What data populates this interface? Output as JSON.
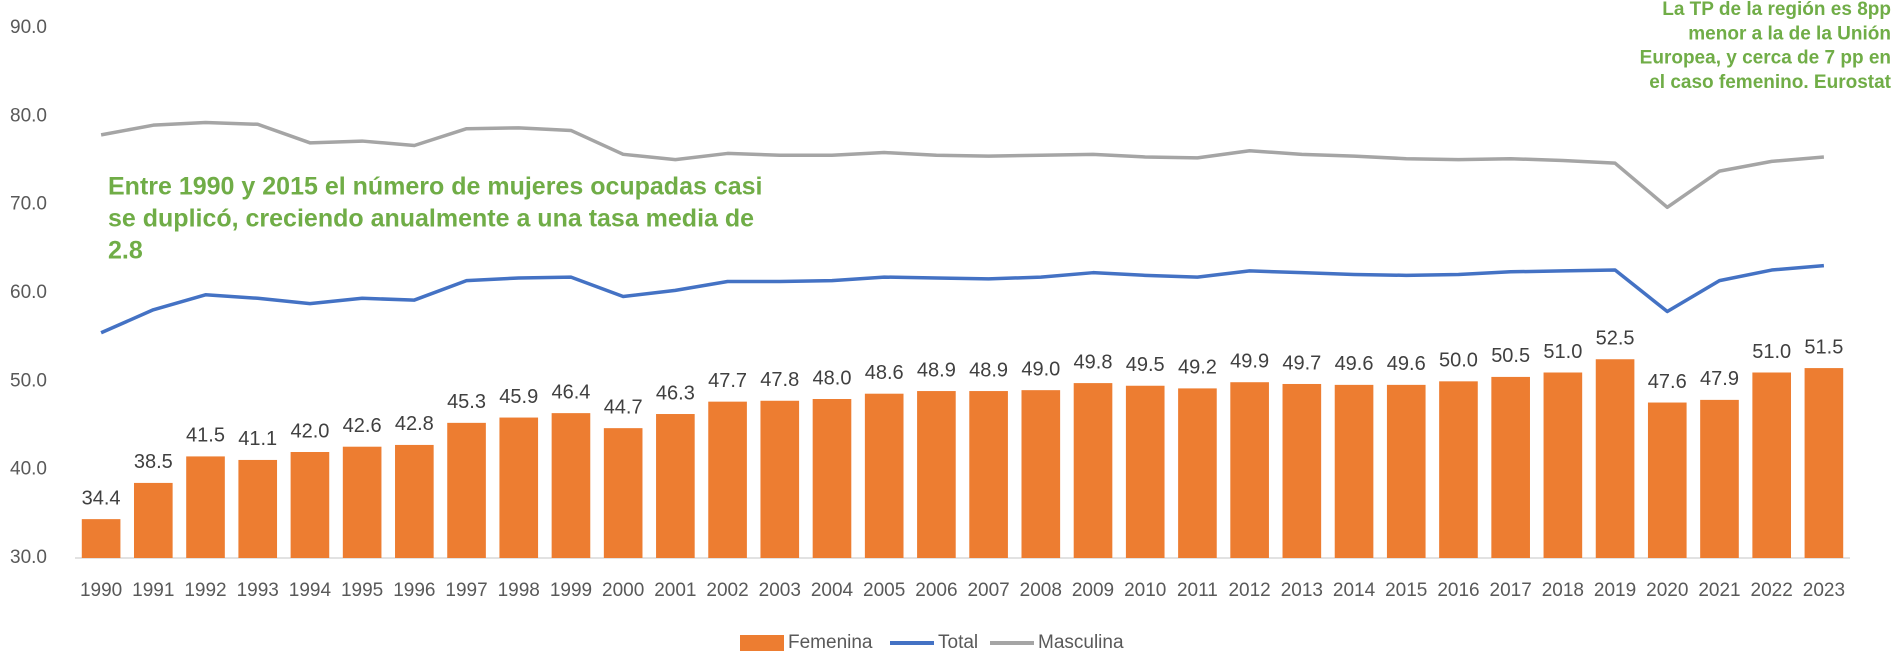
{
  "chart_data": {
    "type": "bar-line",
    "annotations": [
      {
        "lines": [
          "Entre 1990 y 2015 el número de mujeres ocupadas casi",
          "se duplicó, creciendo anualmente a una tasa media de",
          "2.8"
        ]
      },
      {
        "lines": [
          "La TP de la región es 8pp",
          "menor a la de la Unión",
          "Europea, y cerca de 7 pp en",
          "el caso femenino. Eurostat"
        ]
      }
    ],
    "categories": [
      "1990",
      "1991",
      "1992",
      "1993",
      "1994",
      "1995",
      "1996",
      "1997",
      "1998",
      "1999",
      "2000",
      "2001",
      "2002",
      "2003",
      "2004",
      "2005",
      "2006",
      "2007",
      "2008",
      "2009",
      "2010",
      "2011",
      "2012",
      "2013",
      "2014",
      "2015",
      "2016",
      "2017",
      "2018",
      "2019",
      "2020",
      "2021",
      "2022",
      "2023"
    ],
    "series": [
      {
        "name": "Femenina",
        "kind": "bar",
        "color": "#ed7d31",
        "values": [
          34.4,
          38.5,
          41.5,
          41.1,
          42.0,
          42.6,
          42.8,
          45.3,
          45.9,
          46.4,
          44.7,
          46.3,
          47.7,
          47.8,
          48.0,
          48.6,
          48.9,
          48.9,
          49.0,
          49.8,
          49.5,
          49.2,
          49.9,
          49.7,
          49.6,
          49.6,
          50.0,
          50.5,
          51.0,
          52.5,
          47.6,
          47.9,
          51.0,
          51.5
        ],
        "value_labels": [
          "34.4",
          "38.5",
          "41.5",
          "41.1",
          "42.0",
          "42.6",
          "42.8",
          "45.3",
          "45.9",
          "46.4",
          "44.7",
          "46.3",
          "47.7",
          "47.8",
          "48.0",
          "48.6",
          "48.9",
          "48.9",
          "49.0",
          "49.8",
          "49.5",
          "49.2",
          "49.9",
          "49.7",
          "49.6",
          "49.6",
          "50.0",
          "50.5",
          "51.0",
          "52.5",
          "47.6",
          "47.9",
          "51.0",
          "51.5"
        ]
      },
      {
        "name": "Total",
        "kind": "line",
        "color": "#4472c4",
        "values": [
          55.5,
          58.1,
          59.8,
          59.4,
          58.8,
          59.4,
          59.2,
          61.4,
          61.7,
          61.8,
          59.6,
          60.3,
          61.3,
          61.3,
          61.4,
          61.8,
          61.7,
          61.6,
          61.8,
          62.3,
          62.0,
          61.8,
          62.5,
          62.3,
          62.1,
          62.0,
          62.1,
          62.4,
          62.5,
          62.6,
          57.9,
          61.4,
          62.6,
          63.1
        ]
      },
      {
        "name": "Masculina",
        "kind": "line",
        "color": "#a5a5a5",
        "values": [
          77.9,
          79.0,
          79.3,
          79.1,
          77.0,
          77.2,
          76.7,
          78.6,
          78.7,
          78.4,
          75.7,
          75.1,
          75.8,
          75.6,
          75.6,
          75.9,
          75.6,
          75.5,
          75.6,
          75.7,
          75.4,
          75.3,
          76.1,
          75.7,
          75.5,
          75.2,
          75.1,
          75.2,
          75.0,
          74.7,
          69.7,
          73.8,
          74.9,
          75.4
        ]
      }
    ],
    "ylim": [
      30,
      90
    ],
    "yticks": [
      {
        "value": 30,
        "label": "30.0"
      },
      {
        "value": 40,
        "label": "40.0"
      },
      {
        "value": 50,
        "label": "50.0"
      },
      {
        "value": 60,
        "label": "60.0"
      },
      {
        "value": 70,
        "label": "70.0"
      },
      {
        "value": 80,
        "label": "80.0"
      },
      {
        "value": 90,
        "label": "90.0"
      }
    ],
    "grid": false,
    "annotation_color": "#70ad47",
    "legend": "bottom"
  }
}
